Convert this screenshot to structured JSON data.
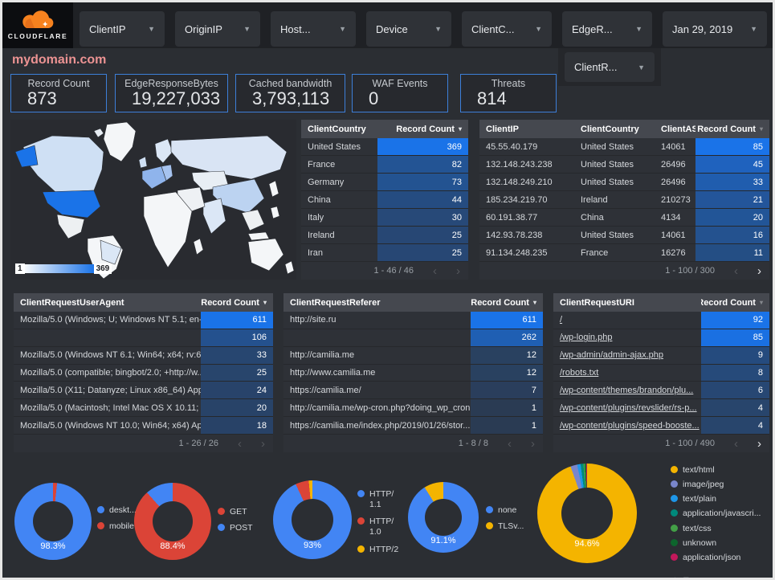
{
  "brand": {
    "name": "CLOUDFLARE",
    "cloud_color": "#f6821f"
  },
  "title": "mydomain.com",
  "filter_bar": {
    "filters": [
      "ClientIP",
      "OriginIP",
      "Host...",
      "Device",
      "ClientC...",
      "EdgeR..."
    ],
    "date_filter": "Jan 29, 2019",
    "secondary_filter": "ClientR..."
  },
  "scorecards": [
    {
      "label": "Record Count",
      "value": "873"
    },
    {
      "label": "EdgeResponseBytes",
      "value": "19,227,033"
    },
    {
      "label": "Cached bandwidth",
      "value": "3,793,113"
    },
    {
      "label": "WAF Events",
      "value": "0"
    },
    {
      "label": "Threats",
      "value": "814"
    }
  ],
  "map": {
    "legend_min": "1",
    "legend_max": "369",
    "max_color": "#1a73e8"
  },
  "heat_color": "#1a73e8",
  "tables": [
    {
      "id": "clientcountry",
      "columns": [
        "ClientCountry",
        "Record Count"
      ],
      "sort_dim": false,
      "metric_max": 369,
      "rows": [
        [
          "United States",
          369
        ],
        [
          "France",
          82
        ],
        [
          "Germany",
          73
        ],
        [
          "China",
          44
        ],
        [
          "Italy",
          30
        ],
        [
          "Ireland",
          25
        ],
        [
          "Iran",
          25
        ]
      ],
      "pagination": {
        "text": "1 - 46 / 46",
        "prev": false,
        "next": false
      }
    },
    {
      "id": "clientip",
      "columns": [
        "ClientIP",
        "ClientCountry",
        "ClientASN",
        "Record Count"
      ],
      "sort_dim": true,
      "metric_max": 85,
      "rows": [
        [
          "45.55.40.179",
          "United States",
          "14061",
          85
        ],
        [
          "132.148.243.238",
          "United States",
          "26496",
          45
        ],
        [
          "132.148.249.210",
          "United States",
          "26496",
          33
        ],
        [
          "185.234.219.70",
          "Ireland",
          "210273",
          21
        ],
        [
          "60.191.38.77",
          "China",
          "4134",
          20
        ],
        [
          "142.93.78.238",
          "United States",
          "14061",
          16
        ],
        [
          "91.134.248.235",
          "France",
          "16276",
          11
        ]
      ],
      "pagination": {
        "text": "1 - 100 / 300",
        "prev": false,
        "next": true
      }
    },
    {
      "id": "useragent",
      "columns": [
        "ClientRequestUserAgent",
        "Record Count"
      ],
      "sort_dim": false,
      "metric_max": 611,
      "rows": [
        [
          "Mozilla/5.0 (Windows; U; Windows NT 5.1; en-U...",
          611
        ],
        [
          "",
          106
        ],
        [
          "Mozilla/5.0 (Windows NT 6.1; Win64; x64; rv:64...",
          33
        ],
        [
          "Mozilla/5.0 (compatible; bingbot/2.0; +http://w...",
          25
        ],
        [
          "Mozilla/5.0 (X11; Datanyze; Linux x86_64) Appl...",
          24
        ],
        [
          "Mozilla/5.0 (Macintosh; Intel Mac OS X 10.11; r...",
          20
        ],
        [
          "Mozilla/5.0 (Windows NT 10.0; Win64; x64) App...",
          18
        ]
      ],
      "pagination": {
        "text": "1 - 26 / 26",
        "prev": false,
        "next": false
      }
    },
    {
      "id": "referer",
      "columns": [
        "ClientRequestReferer",
        "Record Count"
      ],
      "sort_dim": false,
      "metric_max": 611,
      "rows": [
        [
          "http://site.ru",
          611
        ],
        [
          "",
          262
        ],
        [
          "http://camilia.me",
          12
        ],
        [
          "http://www.camilia.me",
          12
        ],
        [
          "https://camilia.me/",
          7
        ],
        [
          "http://camilia.me/wp-cron.php?doing_wp_cron...",
          1
        ],
        [
          "https://camilia.me/index.php/2019/01/26/stor...",
          1
        ]
      ],
      "pagination": {
        "text": "1 - 8 / 8",
        "prev": false,
        "next": false
      }
    },
    {
      "id": "uri",
      "columns": [
        "ClientRequestURI",
        "Record Count"
      ],
      "sort_dim": true,
      "links": true,
      "metric_max": 92,
      "rows": [
        [
          "/",
          92
        ],
        [
          "/wp-login.php",
          85
        ],
        [
          "/wp-admin/admin-ajax.php",
          9
        ],
        [
          "/robots.txt",
          8
        ],
        [
          "/wp-content/themes/brandon/plu...",
          6
        ],
        [
          "/wp-content/plugins/revslider/rs-p...",
          4
        ],
        [
          "/wp-content/plugins/speed-booste...",
          4
        ]
      ],
      "pagination": {
        "text": "1 - 100 / 490",
        "prev": false,
        "next": true
      }
    }
  ],
  "donuts": [
    {
      "name": "device-type",
      "center_label": "98.3%",
      "slices": [
        {
          "label": "mobile",
          "color": "#db4437",
          "pct": 1.7,
          "legend_order": 2
        },
        {
          "label": "deskt...",
          "color": "#4285f4",
          "pct": 98.3,
          "legend_order": 1
        }
      ],
      "legend": [
        "deskt...",
        "mobile"
      ],
      "legend_colors": [
        "#4285f4",
        "#db4437"
      ]
    },
    {
      "name": "http-method",
      "center_label": "88.4%",
      "slices": [
        {
          "label": "GET",
          "color": "#db4437",
          "pct": 88.4
        },
        {
          "label": "POST",
          "color": "#4285f4",
          "pct": 11.6
        }
      ],
      "legend": [
        "GET",
        "POST"
      ],
      "legend_colors": [
        "#db4437",
        "#4285f4"
      ]
    },
    {
      "name": "http-protocol",
      "center_label": "93%",
      "slices": [
        {
          "label": "HTTP/1.1",
          "color": "#4285f4",
          "pct": 93
        },
        {
          "label": "HTTP/1.0",
          "color": "#db4437",
          "pct": 5.5
        },
        {
          "label": "HTTP/2",
          "color": "#f4b400",
          "pct": 1.5
        }
      ],
      "legend": [
        "HTTP/ 1.1",
        "HTTP/ 1.0",
        "HTTP/2"
      ],
      "legend_colors": [
        "#4285f4",
        "#db4437",
        "#f4b400"
      ]
    },
    {
      "name": "tls-version",
      "center_label": "91.1%",
      "slices": [
        {
          "label": "none",
          "color": "#4285f4",
          "pct": 91.1
        },
        {
          "label": "TLSv...",
          "color": "#f4b400",
          "pct": 8.9
        }
      ],
      "legend": [
        "none",
        "TLSv..."
      ],
      "legend_colors": [
        "#4285f4",
        "#f4b400"
      ]
    },
    {
      "name": "content-type",
      "center_label": "94.6%",
      "slices": [
        {
          "label": "text/html",
          "color": "#f4b400",
          "pct": 94.6
        },
        {
          "label": "image/jpeg",
          "color": "#7986cb",
          "pct": 2.2
        },
        {
          "label": "text/plain",
          "color": "#1e96e8",
          "pct": 1.1
        },
        {
          "label": "application/javascri...",
          "color": "#00897b",
          "pct": 0.9
        },
        {
          "label": "text/css",
          "color": "#43a047",
          "pct": 0.5
        },
        {
          "label": "unknown",
          "color": "#0d652d",
          "pct": 0.4
        },
        {
          "label": "application/json",
          "color": "#c2185b",
          "pct": 0.3
        }
      ],
      "legend": [
        "text/html",
        "image/jpeg",
        "text/plain",
        "application/javascri...",
        "text/css",
        "unknown",
        "application/json"
      ],
      "legend_colors": [
        "#f4b400",
        "#7986cb",
        "#1e96e8",
        "#00897b",
        "#43a047",
        "#0d652d",
        "#c2185b"
      ],
      "has_sort_arrows": true
    }
  ]
}
